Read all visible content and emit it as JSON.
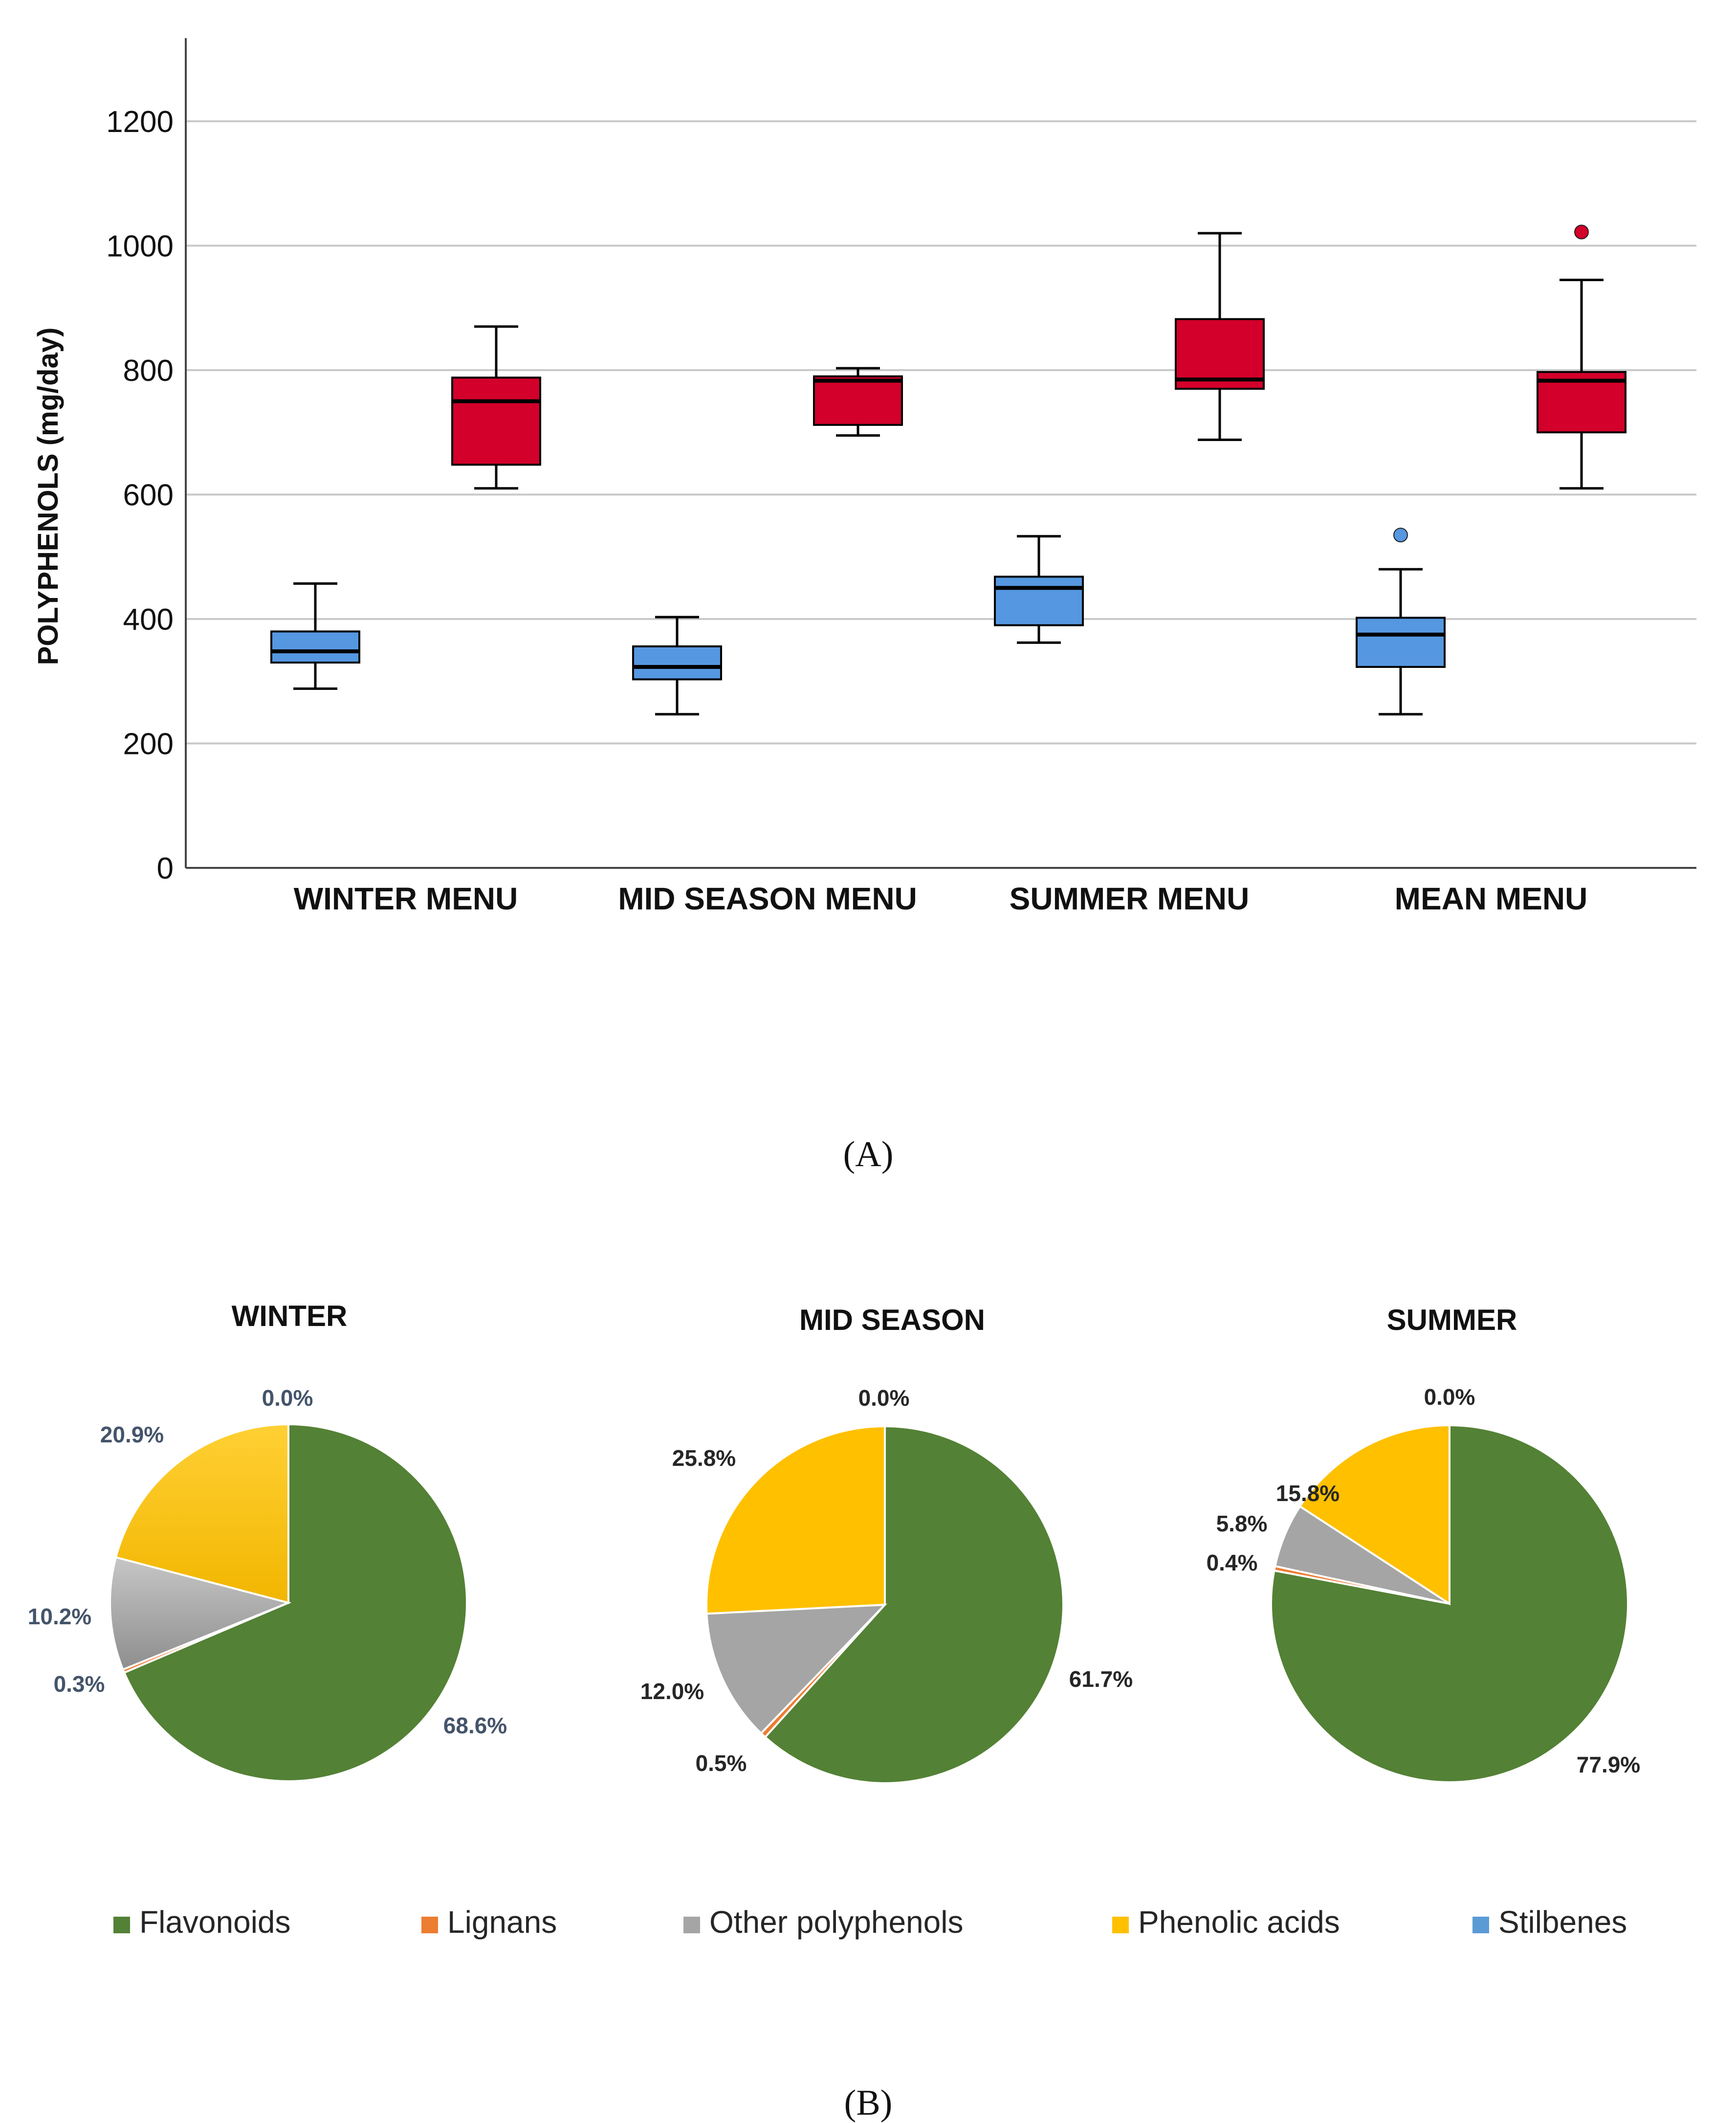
{
  "panel_a_label": "(A)",
  "panel_b_label": "(B)",
  "colors": {
    "blue": "#5597E0",
    "red": "#D2002A",
    "flavonoids": "#538135",
    "lignans": "#ED7D31",
    "other": "#A5A5A5",
    "phenolic": "#FFC000",
    "stilbenes": "#5B9BD5",
    "label_winter": "#44546A",
    "label_dark": "#262626"
  },
  "chart_data": [
    {
      "type": "boxplot",
      "title": "",
      "xlabel": "",
      "ylabel": "POLYPHENOLS (mg/day)",
      "ylim": [
        0,
        1300
      ],
      "yticks": [
        "0",
        "200",
        "400",
        "600",
        "800",
        "1000",
        "1200"
      ],
      "ytick_values": [
        0,
        200,
        400,
        600,
        800,
        1000,
        1200
      ],
      "grid": true,
      "categories": [
        "WINTER MENU",
        "MID SEASON MENU",
        "SUMMER MENU",
        "MEAN MENU"
      ],
      "series": [
        {
          "name": "blue",
          "boxes": [
            {
              "min": 288,
              "q1": 330,
              "median": 348,
              "q3": 380,
              "max": 457,
              "outliers": []
            },
            {
              "min": 247,
              "q1": 303,
              "median": 323,
              "q3": 356,
              "max": 403,
              "outliers": []
            },
            {
              "min": 362,
              "q1": 390,
              "median": 450,
              "q3": 468,
              "max": 533,
              "outliers": []
            },
            {
              "min": 247,
              "q1": 323,
              "median": 375,
              "q3": 402,
              "max": 480,
              "outliers": [
                535
              ]
            }
          ]
        },
        {
          "name": "red",
          "boxes": [
            {
              "min": 610,
              "q1": 648,
              "median": 750,
              "q3": 788,
              "max": 870,
              "outliers": []
            },
            {
              "min": 695,
              "q1": 712,
              "median": 783,
              "q3": 790,
              "max": 803,
              "outliers": []
            },
            {
              "min": 688,
              "q1": 770,
              "median": 785,
              "q3": 882,
              "max": 1020,
              "outliers": []
            },
            {
              "min": 610,
              "q1": 700,
              "median": 783,
              "q3": 797,
              "max": 945,
              "outliers": [
                1022
              ]
            }
          ]
        }
      ]
    },
    {
      "type": "pie",
      "legend": [
        "Flavonoids",
        "Lignans",
        "Other polyphenols",
        "Phenolic acids",
        "Stilbenes"
      ],
      "legend_position": "bottom",
      "pies": [
        {
          "title": "WINTER",
          "labels": [
            "Flavonoids",
            "Lignans",
            "Other polyphenols",
            "Phenolic acids",
            "Stilbenes"
          ],
          "values": [
            68.6,
            0.3,
            10.2,
            20.9,
            0.0
          ],
          "value_labels": [
            "68.6%",
            "0.3%",
            "10.2%",
            "20.9%",
            "0.0%"
          ]
        },
        {
          "title": "MID SEASON",
          "labels": [
            "Flavonoids",
            "Lignans",
            "Other polyphenols",
            "Phenolic acids",
            "Stilbenes"
          ],
          "values": [
            61.7,
            0.5,
            12.0,
            25.8,
            0.0
          ],
          "value_labels": [
            "61.7%",
            "0.5%",
            "12.0%",
            "25.8%",
            "0.0%"
          ]
        },
        {
          "title": "SUMMER",
          "labels": [
            "Flavonoids",
            "Lignans",
            "Other polyphenols",
            "Phenolic acids",
            "Stilbenes"
          ],
          "values": [
            77.9,
            0.4,
            5.8,
            15.8,
            0.0
          ],
          "value_labels": [
            "77.9%",
            "0.4%",
            "5.8%",
            "15.8%",
            "0.0%"
          ]
        }
      ]
    }
  ]
}
